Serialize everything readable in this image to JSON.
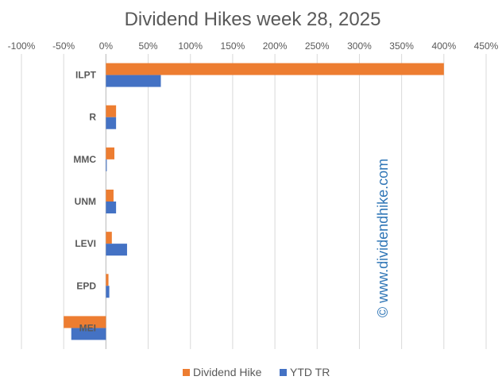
{
  "chart_data": {
    "type": "bar",
    "orientation": "horizontal",
    "title": "Dividend Hikes week 28, 2025",
    "categories": [
      "ILPT",
      "R",
      "MMC",
      "UNM",
      "LEVI",
      "EPD",
      "MEI"
    ],
    "series": [
      {
        "name": "Dividend Hike",
        "color": "#ED7D31",
        "values": [
          400,
          12,
          10,
          9,
          7,
          3,
          -50
        ]
      },
      {
        "name": "YTD TR",
        "color": "#4472C4",
        "values": [
          65,
          12,
          1,
          12,
          25,
          4,
          -41
        ]
      }
    ],
    "xlim": [
      -100,
      450
    ],
    "x_ticks": [
      "-100%",
      "-50%",
      "0%",
      "50%",
      "100%",
      "150%",
      "200%",
      "250%",
      "300%",
      "350%",
      "400%",
      "450%"
    ],
    "x_tick_values": [
      -100,
      -50,
      0,
      50,
      100,
      150,
      200,
      250,
      300,
      350,
      400,
      450
    ],
    "xlabel": "",
    "ylabel": "",
    "grid": true,
    "legend_position": "bottom",
    "watermark": "© www.dividendhike.com"
  }
}
